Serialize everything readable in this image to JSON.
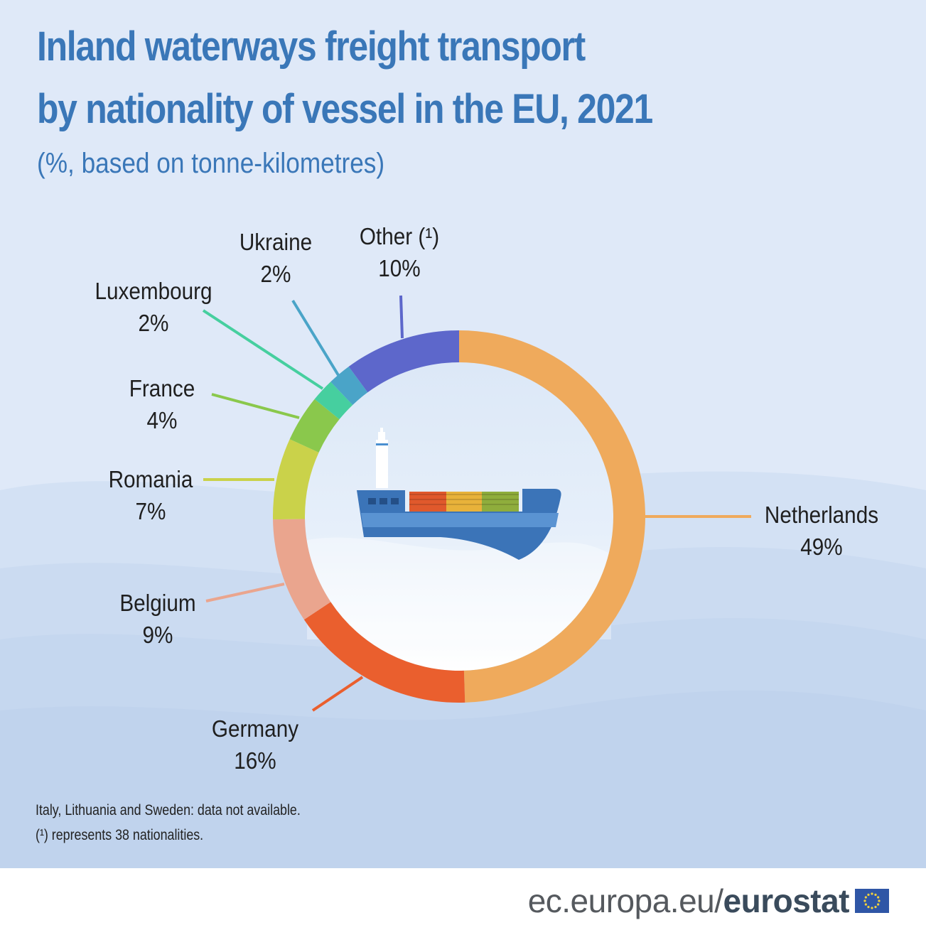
{
  "title_line1": "Inland waterways freight transport",
  "title_line2": "by nationality of vessel in the EU, 2021",
  "subtitle": "(%, based on tonne-kilometres)",
  "chart_data": {
    "type": "pie",
    "unit": "%",
    "slices": [
      {
        "name": "Netherlands",
        "value": 49,
        "label": "49%",
        "color": "#efaa5c"
      },
      {
        "name": "Germany",
        "value": 16,
        "label": "16%",
        "color": "#ea5f2e"
      },
      {
        "name": "Belgium",
        "value": 9,
        "label": "9%",
        "color": "#eaa58e"
      },
      {
        "name": "Romania",
        "value": 7,
        "label": "7%",
        "color": "#cad24a"
      },
      {
        "name": "France",
        "value": 4,
        "label": "4%",
        "color": "#8ac84c"
      },
      {
        "name": "Luxembourg",
        "value": 2,
        "label": "2%",
        "color": "#46cf9f"
      },
      {
        "name": "Ukraine",
        "value": 2,
        "label": "2%",
        "color": "#4aa4c8"
      },
      {
        "name": "Other",
        "display_name": "Other (¹)",
        "value": 10,
        "label": "10%",
        "color": "#5d67cb"
      }
    ]
  },
  "notes": {
    "line1": "Italy, Lithuania and Sweden: data not available.",
    "line2": "(¹) represents 38 nationalities."
  },
  "footer": {
    "domain": "ec.europa.eu/",
    "brand": "eurostat"
  },
  "icons": [
    "cargo-ship-icon",
    "eu-flag-icon"
  ]
}
